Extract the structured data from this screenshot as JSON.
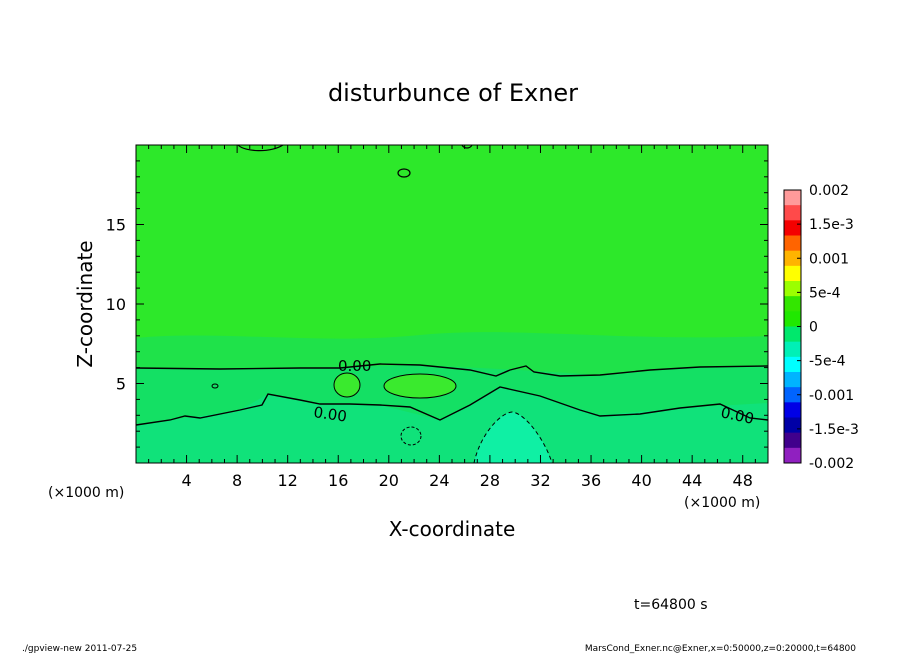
{
  "chart_data": {
    "type": "heatmap",
    "title": "disturbunce of Exner",
    "xlabel": "X-coordinate",
    "ylabel": "Z-coordinate",
    "x_unit": "(×1000 m)",
    "y_unit": "(×1000 m)",
    "xlim": [
      0,
      50
    ],
    "ylim": [
      0,
      20
    ],
    "x_ticks": [
      4,
      8,
      12,
      16,
      20,
      24,
      28,
      32,
      36,
      40,
      44,
      48
    ],
    "x_tick_labels": [
      "4",
      "8",
      "12",
      "16",
      "20",
      "24",
      "28",
      "32",
      "36",
      "40",
      "44",
      "48"
    ],
    "y_ticks": [
      5,
      10,
      15
    ],
    "y_tick_labels": [
      "5",
      "10",
      "15"
    ],
    "colorbar": {
      "levels": [
        "0.002",
        "1.5e-3",
        "0.001",
        "5e-4",
        "0",
        "-5e-4",
        "-0.001",
        "-1.5e-3",
        "-0.002"
      ],
      "colors": [
        "#ff9a9a",
        "#ff4a4a",
        "#f40000",
        "#ff6400",
        "#ffb400",
        "#ffff00",
        "#9bff00",
        "#33e600",
        "#20e800",
        "#00e86c",
        "#00f0b6",
        "#00ffff",
        "#00b4ff",
        "#0064ff",
        "#0000e6",
        "#0000a6",
        "#40008c",
        "#9020c0"
      ]
    },
    "contour_labels": [
      "0.00",
      "0.00",
      "0.00"
    ],
    "time_label": "t=64800 s"
  },
  "footer": {
    "left": "./gpview-new   2011-07-25",
    "right": "MarsCond_Exner.nc@Exner,x=0:50000,z=0:20000,t=64800"
  },
  "colors": {
    "background_field": "#2de82a",
    "lower_band": "#18e050",
    "negative_core": "#14ea8c"
  }
}
